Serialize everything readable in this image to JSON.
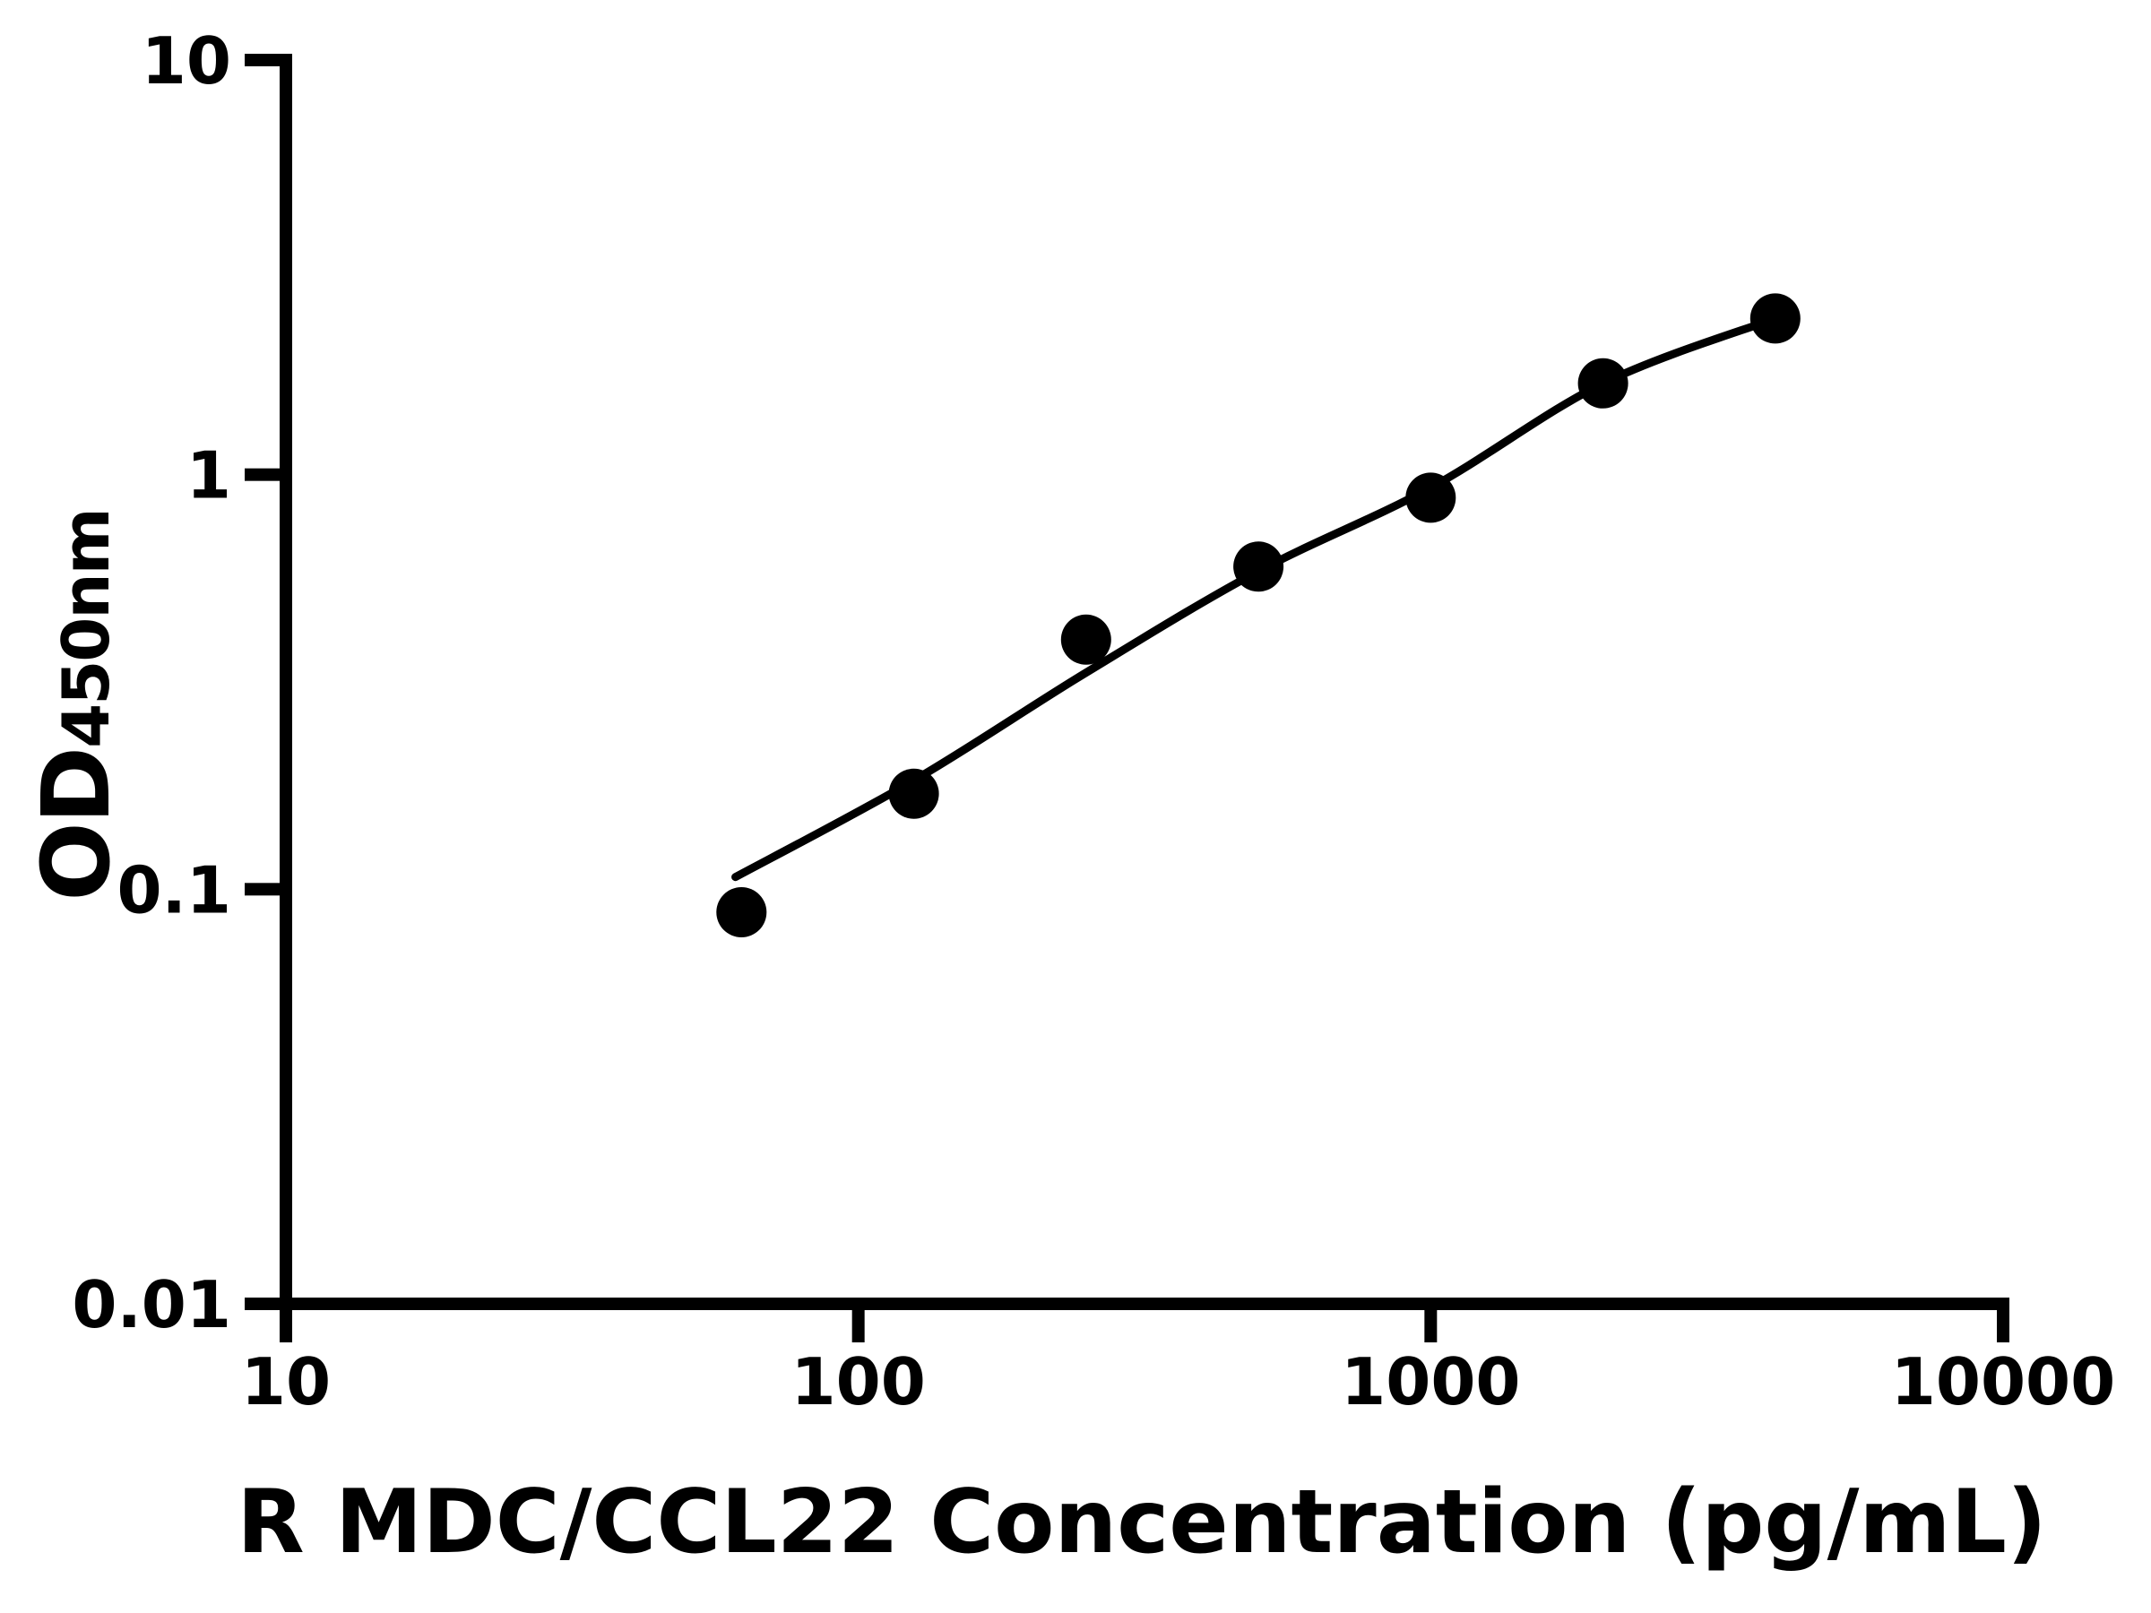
{
  "figure": {
    "background": "#ffffff",
    "ink_color": "#000000"
  },
  "chart_data": {
    "type": "scatter",
    "title": "",
    "xlabel": "R MDC/CCL22 Concentration (pg/mL)",
    "ylabel_main": "OD",
    "ylabel_sub": "450nm",
    "x_scale": "log",
    "y_scale": "log",
    "xlim": [
      10,
      10000
    ],
    "ylim": [
      0.01,
      10
    ],
    "xticks": [
      10,
      100,
      1000,
      10000
    ],
    "yticks": [
      0.01,
      0.1,
      1,
      10
    ],
    "xtick_labels": [
      "10",
      "100",
      "1000",
      "10000"
    ],
    "ytick_labels": [
      "0.01",
      "0.1",
      "1",
      "10"
    ],
    "grid": false,
    "legend": null,
    "series": [
      {
        "name": "standard-points",
        "marker": "filled-circle",
        "color": "#000000",
        "x": [
          62.5,
          125,
          250,
          500,
          1000,
          2000,
          4000
        ],
        "y": [
          0.088,
          0.17,
          0.4,
          0.6,
          0.88,
          1.66,
          2.38
        ]
      }
    ],
    "fit_curve": {
      "name": "fitted-standard-curve",
      "color": "#000000",
      "points": [
        [
          61,
          0.107
        ],
        [
          125,
          0.183
        ],
        [
          250,
          0.333
        ],
        [
          500,
          0.585
        ],
        [
          1000,
          0.93
        ],
        [
          2000,
          1.66
        ],
        [
          4000,
          2.38
        ]
      ]
    }
  }
}
